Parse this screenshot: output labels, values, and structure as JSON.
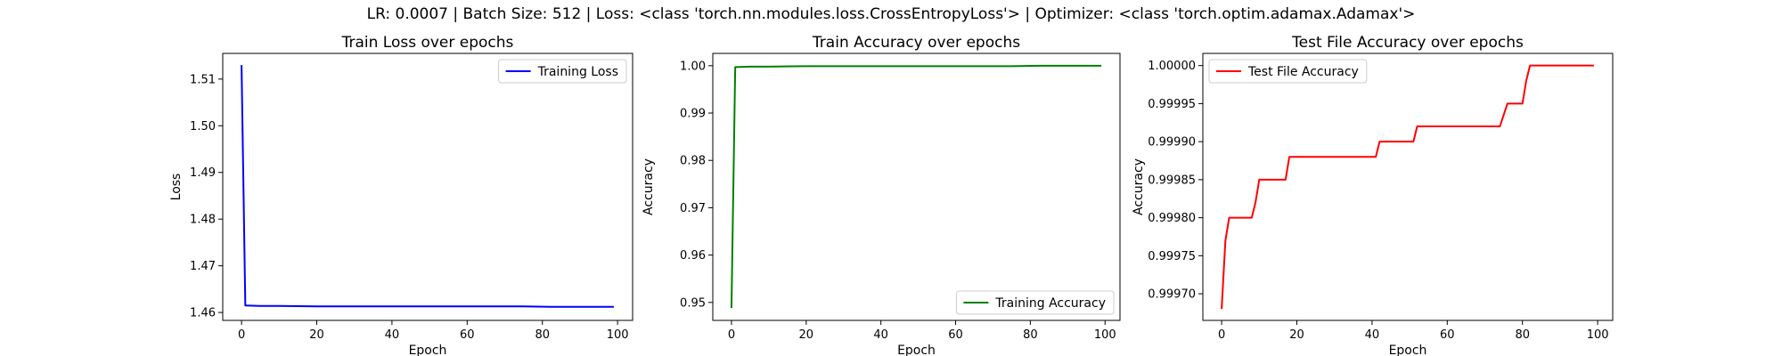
{
  "suptitle": "LR: 0.0007 | Batch Size: 512 | Loss: <class 'torch.nn.modules.loss.CrossEntropyLoss'> | Optimizer: <class 'torch.optim.adamax.Adamax'>",
  "chart_data": [
    {
      "type": "line",
      "title": "Train Loss over epochs",
      "xlabel": "Epoch",
      "ylabel": "Loss",
      "xlim": [
        -5,
        104
      ],
      "ylim": [
        1.4583,
        1.5155
      ],
      "xticks": [
        0,
        20,
        40,
        60,
        80,
        100
      ],
      "yticks": [
        1.46,
        1.47,
        1.48,
        1.49,
        1.5,
        1.51
      ],
      "ytick_labels": [
        "1.46",
        "1.47",
        "1.48",
        "1.49",
        "1.50",
        "1.51"
      ],
      "legend_position": "top-right",
      "series": [
        {
          "name": "Training Loss",
          "color": "#0000ff",
          "points": [
            [
              0,
              1.513
            ],
            [
              1,
              1.4615
            ],
            [
              5,
              1.4614
            ],
            [
              10,
              1.4614
            ],
            [
              20,
              1.4613
            ],
            [
              40,
              1.4613
            ],
            [
              60,
              1.4613
            ],
            [
              75,
              1.4613
            ],
            [
              82,
              1.4612
            ],
            [
              99,
              1.4612
            ]
          ]
        }
      ]
    },
    {
      "type": "line",
      "title": "Train Accuracy over epochs",
      "xlabel": "Epoch",
      "ylabel": "Accuracy",
      "xlim": [
        -5,
        104
      ],
      "ylim": [
        0.9462,
        1.0026
      ],
      "xticks": [
        0,
        20,
        40,
        60,
        80,
        100
      ],
      "yticks": [
        0.95,
        0.96,
        0.97,
        0.98,
        0.99,
        1.0
      ],
      "ytick_labels": [
        "0.95",
        "0.96",
        "0.97",
        "0.98",
        "0.99",
        "1.00"
      ],
      "legend_position": "bottom-right",
      "series": [
        {
          "name": "Training Accuracy",
          "color": "#008000",
          "points": [
            [
              0,
              0.9488
            ],
            [
              1,
              0.9997
            ],
            [
              5,
              0.9998
            ],
            [
              10,
              0.9998
            ],
            [
              20,
              0.9999
            ],
            [
              40,
              0.9999
            ],
            [
              60,
              0.9999
            ],
            [
              75,
              0.9999
            ],
            [
              82,
              1.0
            ],
            [
              99,
              1.0
            ]
          ]
        }
      ]
    },
    {
      "type": "line",
      "title": "Test File Accuracy over epochs",
      "xlabel": "Epoch",
      "ylabel": "Accuracy",
      "xlim": [
        -5,
        104
      ],
      "ylim": [
        0.999665,
        1.000016
      ],
      "xticks": [
        0,
        20,
        40,
        60,
        80,
        100
      ],
      "yticks": [
        0.9997,
        0.99975,
        0.9998,
        0.99985,
        0.9999,
        0.99995,
        1.0
      ],
      "ytick_labels": [
        "0.99970",
        "0.99975",
        "0.99980",
        "0.99985",
        "0.99990",
        "0.99995",
        "1.00000"
      ],
      "legend_position": "top-left",
      "series": [
        {
          "name": "Test File Accuracy",
          "color": "#ff0000",
          "points": [
            [
              0,
              0.99968
            ],
            [
              1,
              0.99977
            ],
            [
              2,
              0.9998
            ],
            [
              8,
              0.9998
            ],
            [
              9,
              0.99982
            ],
            [
              10,
              0.99985
            ],
            [
              17,
              0.99985
            ],
            [
              18,
              0.99988
            ],
            [
              41,
              0.99988
            ],
            [
              42,
              0.9999
            ],
            [
              51,
              0.9999
            ],
            [
              52,
              0.99992
            ],
            [
              74,
              0.99992
            ],
            [
              76,
              0.99995
            ],
            [
              80,
              0.99995
            ],
            [
              81,
              0.99998
            ],
            [
              82,
              1.0
            ],
            [
              99,
              1.0
            ]
          ]
        }
      ]
    }
  ]
}
